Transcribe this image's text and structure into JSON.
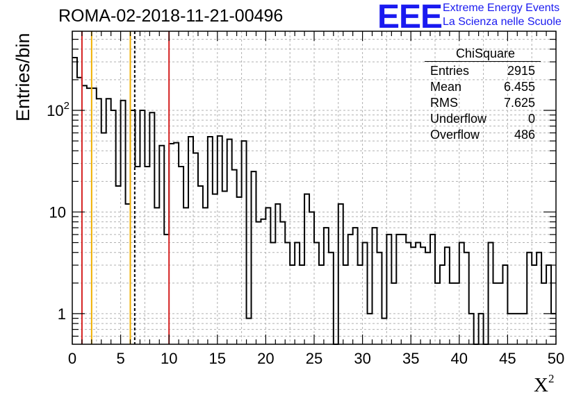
{
  "title": "ROMA-02-2018-11-21-00496",
  "logo": {
    "letters": "EEE",
    "line1": "Extreme Energy Events",
    "line2": "La Scienza nelle Scuole",
    "color": "#1a1af0"
  },
  "stats": {
    "name": "ChiSquare",
    "rows": [
      {
        "label": "Entries",
        "value": "2915"
      },
      {
        "label": "Mean",
        "value": "6.455"
      },
      {
        "label": "RMS",
        "value": "7.625"
      },
      {
        "label": "Underflow",
        "value": "0"
      },
      {
        "label": "Overflow",
        "value": "486"
      }
    ]
  },
  "chart_data": {
    "type": "bar",
    "style": "step-histogram",
    "title": "ROMA-02-2018-11-21-00496",
    "xlabel": "X",
    "xlabel_sup": "2",
    "ylabel": "Entries/bin",
    "xlim": [
      0,
      50
    ],
    "ylim": [
      0.5,
      600
    ],
    "yscale": "log",
    "grid": true,
    "bin_width": 0.5,
    "x_ticks": [
      "0",
      "5",
      "10",
      "15",
      "20",
      "25",
      "30",
      "35",
      "40",
      "45",
      "50"
    ],
    "y_ticks": [
      {
        "value": 1,
        "base": "1",
        "exp": ""
      },
      {
        "value": 10,
        "base": "10",
        "exp": ""
      },
      {
        "value": 100,
        "base": "10",
        "exp": "2"
      }
    ],
    "values": [
      330,
      210,
      175,
      165,
      165,
      130,
      60,
      130,
      100,
      18,
      125,
      12,
      100,
      28,
      100,
      28,
      95,
      11,
      45,
      6,
      47,
      48,
      28,
      11,
      55,
      38,
      18,
      11,
      55,
      15,
      56,
      16,
      52,
      26,
      14,
      50,
      0.9,
      25,
      8,
      8.5,
      11,
      5,
      12,
      8,
      5,
      3,
      5,
      3,
      15,
      10,
      5,
      3,
      7,
      4,
      0.5,
      12,
      3,
      6,
      7,
      3,
      5,
      1,
      7,
      4,
      0.9,
      6,
      2,
      6,
      6,
      5,
      4.5,
      5,
      4.5,
      4,
      6,
      2,
      3,
      4.5,
      2,
      2,
      5,
      4,
      1,
      0.5,
      1,
      0.5,
      5,
      2,
      2,
      3,
      1,
      1,
      1,
      1,
      4,
      3,
      4,
      2,
      3,
      1
    ],
    "vlines": [
      {
        "x": 1,
        "color": "#d42020",
        "style": "solid"
      },
      {
        "x": 2,
        "color": "#f0b000",
        "style": "solid"
      },
      {
        "x": 6,
        "color": "#f0b000",
        "style": "solid"
      },
      {
        "x": 6.455,
        "color": "#000000",
        "style": "dashed"
      },
      {
        "x": 10,
        "color": "#d42020",
        "style": "solid"
      }
    ],
    "line_color": "#000000",
    "grid_color": "#b0b0b0"
  }
}
